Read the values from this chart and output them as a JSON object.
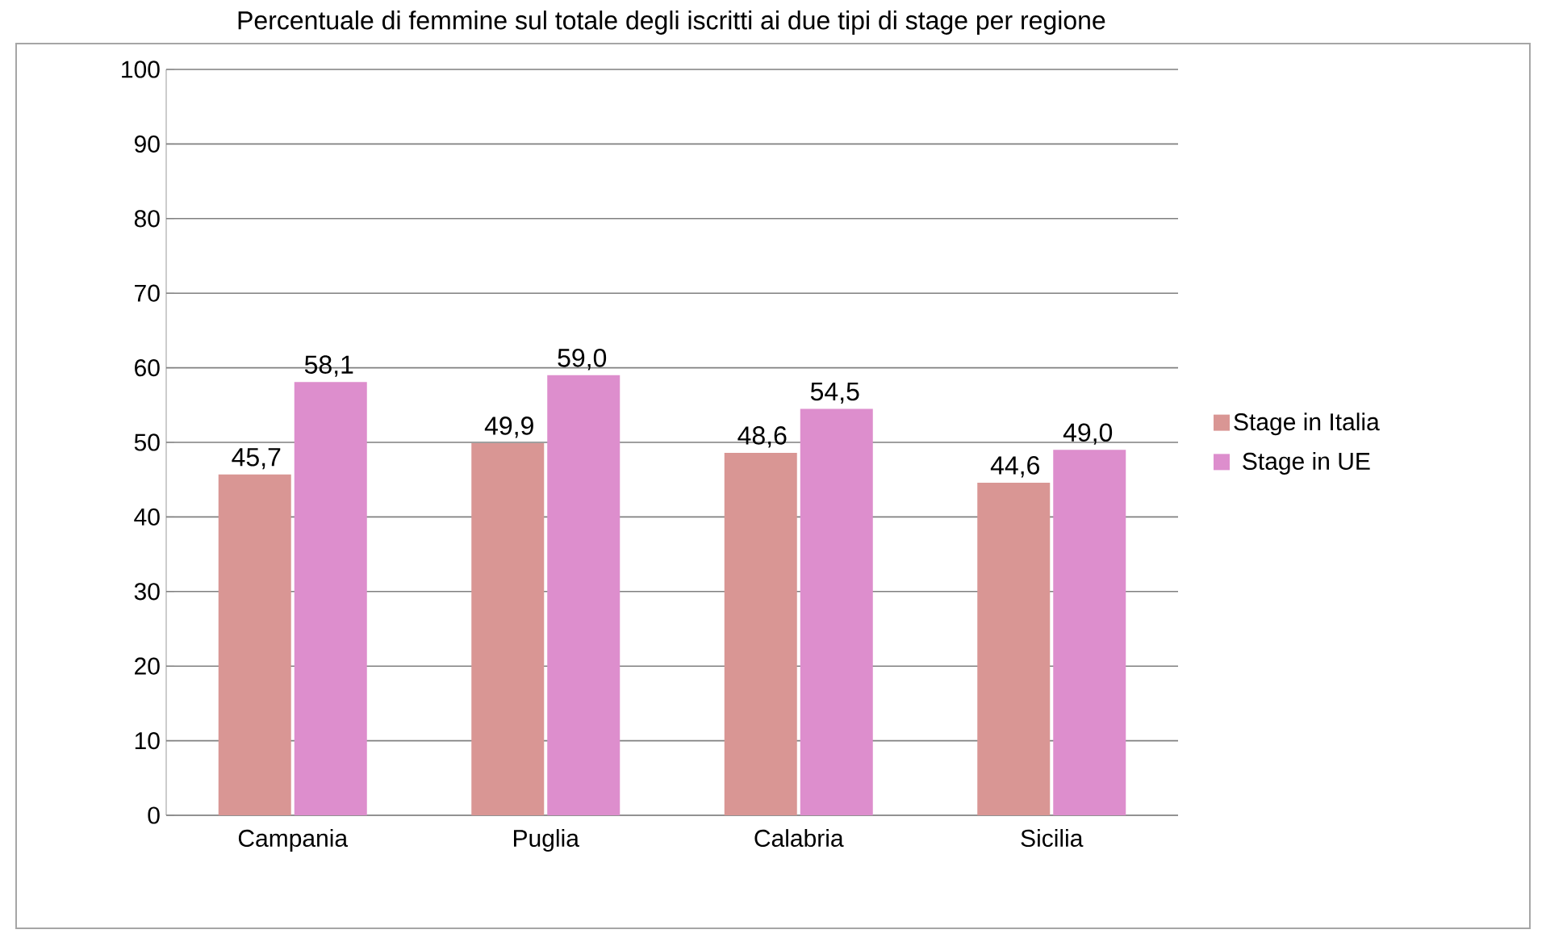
{
  "chart_data": {
    "type": "bar",
    "title": "Percentuale di femmine sul totale degli iscritti ai due tipi di stage per regione",
    "categories": [
      "Campania",
      "Puglia",
      "Calabria",
      "Sicilia"
    ],
    "series": [
      {
        "name": "Stage in Italia",
        "color": "#d99694",
        "values": [
          45.7,
          49.9,
          48.6,
          44.6
        ],
        "value_labels": [
          "45,7",
          "49,9",
          "48,6",
          "44,6"
        ]
      },
      {
        "name": "Stage in UE",
        "color": "#dd8ecd",
        "values": [
          58.1,
          59.0,
          54.5,
          49.0
        ],
        "value_labels": [
          "58,1",
          "59,0",
          "54,5",
          "49,0"
        ]
      }
    ],
    "ylim": [
      0,
      100
    ],
    "yticks": [
      0,
      10,
      20,
      30,
      40,
      50,
      60,
      70,
      80,
      90,
      100
    ],
    "grid": "y",
    "legend": "right"
  }
}
